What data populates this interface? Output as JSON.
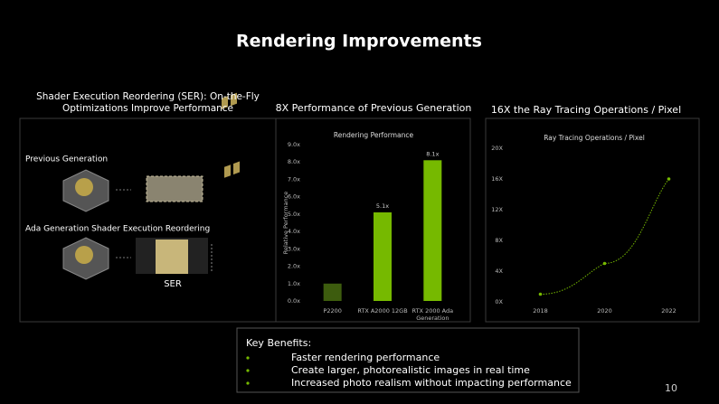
{
  "title": "Rendering Improvements",
  "panels": {
    "ser": {
      "heading": "Shader Execution Reordering (SER): On-the-Fly Optimizations Improve Performance",
      "previous_label": "Previous Generation",
      "ada_label": "Ada Generation Shader Execution Reordering",
      "ser_label": "SER"
    },
    "performance": {
      "heading": "8X Performance of Previous Generation"
    },
    "ray_tracing": {
      "heading": "16X the Ray Tracing Operations / Pixel"
    }
  },
  "chart_data": [
    {
      "type": "bar",
      "title": "Rendering Performance",
      "y_label": "Relative Performance",
      "categories": [
        "P2200",
        "RTX A2000 12GB",
        "RTX 2000 Ada Generation"
      ],
      "values": [
        1.0,
        5.1,
        8.1
      ],
      "value_labels": [
        null,
        "5.1x",
        "8.1x"
      ],
      "colors": [
        "#3d5c0e",
        "#76b900",
        "#76b900"
      ],
      "ylim": [
        0,
        9
      ],
      "yticks": [
        {
          "value": 0,
          "label": "0.0x"
        },
        {
          "value": 1,
          "label": "1.0x"
        },
        {
          "value": 2,
          "label": "2.0x"
        },
        {
          "value": 3,
          "label": "3.0x"
        },
        {
          "value": 4,
          "label": "4.0x"
        },
        {
          "value": 5,
          "label": "5.0x"
        },
        {
          "value": 6,
          "label": "6.0x"
        },
        {
          "value": 7,
          "label": "7.0x"
        },
        {
          "value": 8,
          "label": "8.0x"
        },
        {
          "value": 9,
          "label": "9.0x"
        }
      ]
    },
    {
      "type": "line",
      "title": "Ray Tracing Operations / Pixel",
      "x": [
        2018,
        2020,
        2022
      ],
      "xlim": [
        2017,
        2023
      ],
      "xticks": [
        2018,
        2020,
        2022
      ],
      "series": [
        {
          "name": "Ray Tracing Operations / Pixel",
          "color": "#76b900",
          "values": [
            1,
            5,
            16
          ]
        }
      ],
      "ylim": [
        0,
        20
      ],
      "yticks": [
        {
          "value": 0,
          "label": "0X"
        },
        {
          "value": 4,
          "label": "4X"
        },
        {
          "value": 8,
          "label": "8X"
        },
        {
          "value": 12,
          "label": "12X"
        },
        {
          "value": 16,
          "label": "16X"
        },
        {
          "value": 20,
          "label": "20X"
        }
      ]
    }
  ],
  "key_benefits": {
    "heading": "Key Benefits:",
    "items": [
      "Faster rendering performance",
      "Create larger, photorealistic images in real time",
      "Increased photo realism without impacting performance"
    ]
  },
  "page_number": "10"
}
